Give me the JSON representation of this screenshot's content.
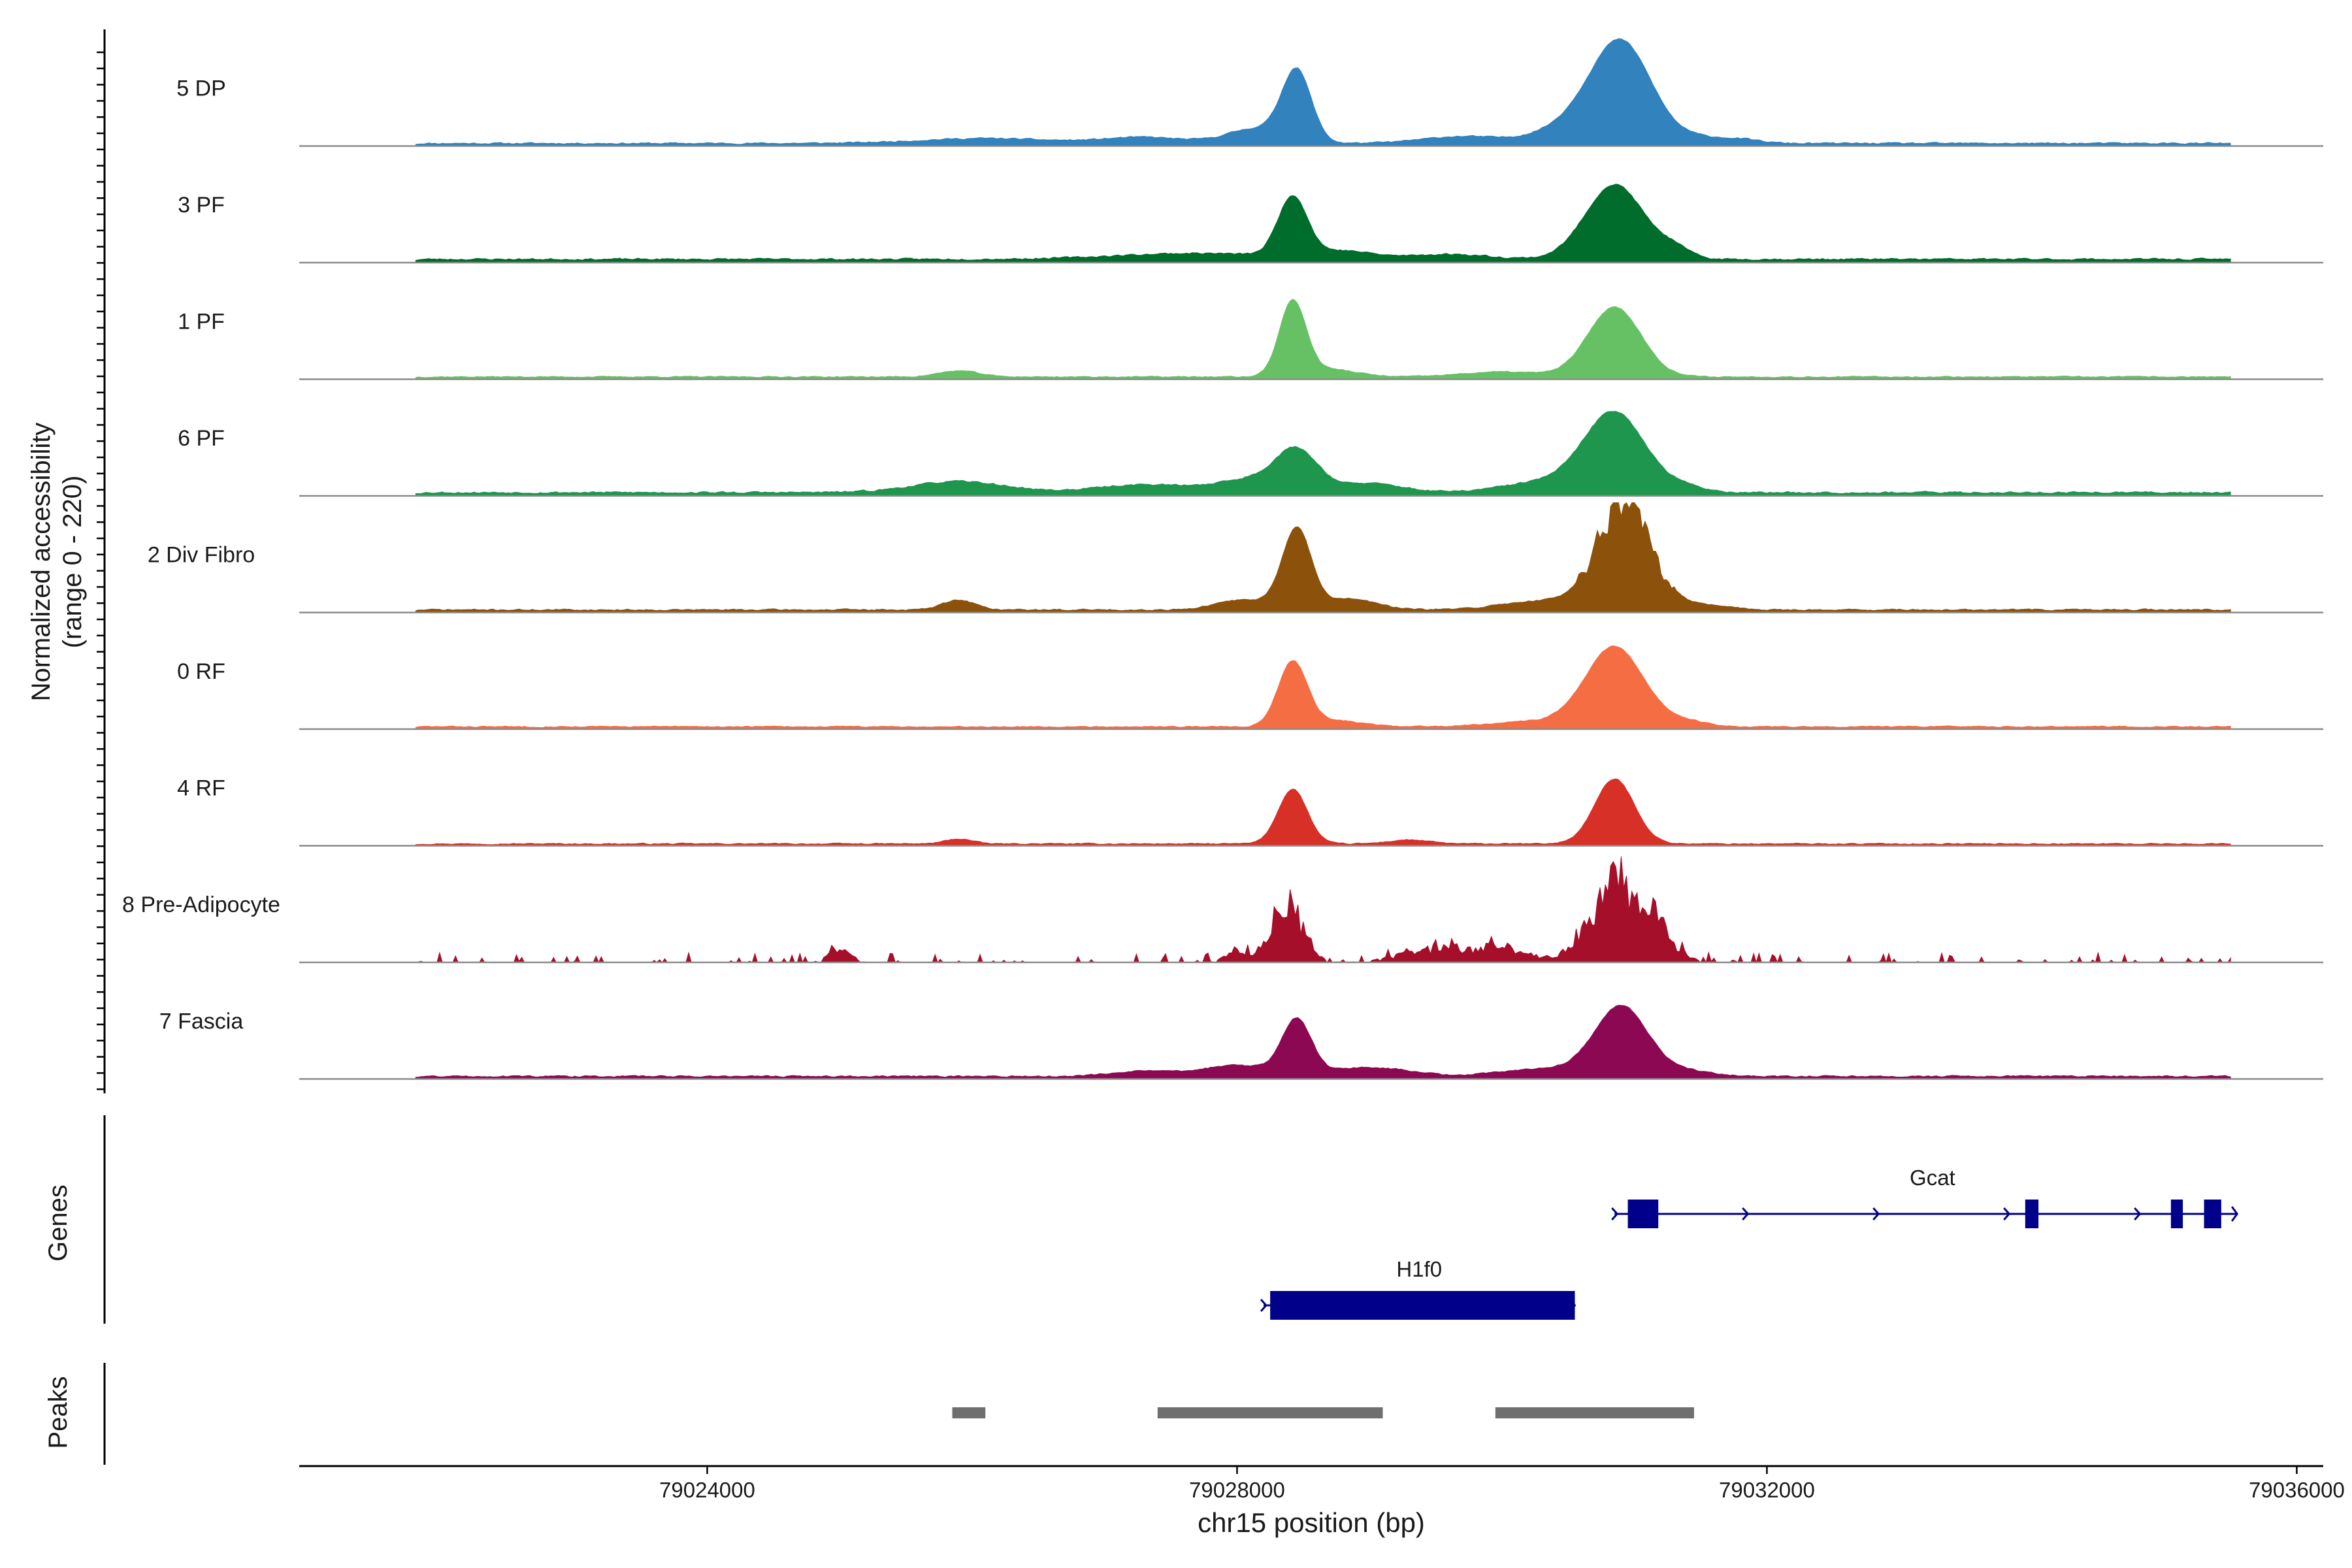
{
  "chart_data": {
    "type": "area",
    "title": "",
    "xlabel": "chr15 position (bp)",
    "ylabel_line1": "Normalized accessibility",
    "ylabel_line2": "(range 0 - 220)",
    "ylim": [
      0,
      220
    ],
    "xlim": [
      79020920,
      79036200
    ],
    "x_ticks": [
      79024000,
      79028000,
      79032000,
      79036000
    ],
    "x_tick_labels": [
      "79024000",
      "79028000",
      "79032000",
      "79036000"
    ],
    "tracks": [
      {
        "name": "5 DP",
        "color": "#3182bd",
        "base": 3,
        "peaks": [
          [
            79028450,
            140,
            110,
            0
          ],
          [
            79030900,
            200,
            230,
            0
          ],
          [
            79028150,
            30,
            220,
            0
          ],
          [
            79030500,
            30,
            250,
            0
          ],
          [
            79026100,
            10,
            500,
            0
          ],
          [
            79027300,
            12,
            300,
            0
          ],
          [
            79029700,
            14,
            300,
            0
          ],
          [
            79031500,
            10,
            160,
            0
          ],
          [
            79031800,
            8,
            150,
            0
          ]
        ],
        "noise": 5,
        "seed": 11
      },
      {
        "name": "3 PF",
        "color": "#006d2c",
        "base": 4,
        "peaks": [
          [
            79028420,
            120,
            110,
            0
          ],
          [
            79030850,
            150,
            220,
            0
          ],
          [
            79027700,
            12,
            600,
            0
          ],
          [
            79028800,
            15,
            220,
            0
          ],
          [
            79031300,
            18,
            120,
            0
          ],
          [
            79029600,
            10,
            300,
            0
          ]
        ],
        "noise": 6,
        "seed": 23
      },
      {
        "name": "1 PF",
        "color": "#66c164",
        "base": 3,
        "peaks": [
          [
            79028420,
            150,
            100,
            0
          ],
          [
            79030850,
            140,
            200,
            0
          ],
          [
            79025900,
            12,
            150,
            0
          ],
          [
            79028700,
            15,
            200,
            0
          ],
          [
            79030000,
            10,
            300,
            0
          ]
        ],
        "noise": 4,
        "seed": 37
      },
      {
        "name": "6 PF",
        "color": "#1f964e",
        "base": 4,
        "peaks": [
          [
            79028450,
            80,
            160,
            0
          ],
          [
            79030850,
            160,
            230,
            0
          ],
          [
            79028100,
            25,
            250,
            0
          ],
          [
            79029000,
            18,
            250,
            0
          ],
          [
            79030300,
            20,
            300,
            0
          ],
          [
            79025900,
            22,
            350,
            0
          ],
          [
            79027300,
            16,
            350,
            0
          ],
          [
            79031400,
            10,
            150,
            0
          ]
        ],
        "noise": 6,
        "seed": 53
      },
      {
        "name": "2 Div Fibro",
        "color": "#8c510a",
        "base": 3,
        "peaks": [
          [
            79028450,
            160,
            110,
            0
          ],
          [
            79030920,
            220,
            200,
            1
          ],
          [
            79028050,
            20,
            200,
            0
          ],
          [
            79028850,
            22,
            200,
            0
          ],
          [
            79030300,
            18,
            300,
            0
          ],
          [
            79025900,
            20,
            120,
            0
          ],
          [
            79031500,
            10,
            200,
            0
          ]
        ],
        "noise": 5,
        "seed": 71
      },
      {
        "name": "0 RF",
        "color": "#f46d43",
        "base": 3,
        "peaks": [
          [
            79028420,
            130,
            110,
            0
          ],
          [
            79030850,
            160,
            220,
            0
          ],
          [
            79028750,
            12,
            200,
            0
          ],
          [
            79030200,
            10,
            300,
            0
          ],
          [
            79031400,
            10,
            150,
            0
          ]
        ],
        "noise": 4,
        "seed": 83
      },
      {
        "name": "4 RF",
        "color": "#d73027",
        "base": 2,
        "peaks": [
          [
            79028420,
            110,
            110,
            0
          ],
          [
            79030850,
            130,
            150,
            0
          ],
          [
            79025900,
            10,
            100,
            0
          ],
          [
            79029300,
            8,
            150,
            0
          ]
        ],
        "noise": 4,
        "seed": 97
      },
      {
        "name": "8 Pre-Adipocyte",
        "color": "#a50f2a",
        "base": 0,
        "peaks": [
          [
            79028380,
            140,
            120,
            1
          ],
          [
            79030920,
            190,
            220,
            1
          ],
          [
            79028000,
            20,
            100,
            0
          ],
          [
            79029500,
            30,
            250,
            1
          ],
          [
            79030000,
            30,
            200,
            1
          ],
          [
            79025000,
            30,
            80,
            1
          ]
        ],
        "noise": 14,
        "seed": 113,
        "sparse": true
      },
      {
        "name": "7 Fascia",
        "color": "#8c0852",
        "base": 3,
        "peaks": [
          [
            79028450,
            110,
            110,
            0
          ],
          [
            79030900,
            140,
            200,
            0
          ],
          [
            79028000,
            22,
            250,
            0
          ],
          [
            79029000,
            18,
            300,
            0
          ],
          [
            79030300,
            15,
            300,
            0
          ],
          [
            79027300,
            10,
            250,
            0
          ],
          [
            79031400,
            10,
            200,
            0
          ]
        ],
        "noise": 5,
        "seed": 131
      }
    ],
    "genes_label": "Genes",
    "genes": [
      {
        "name": "Gcat",
        "start": 79030850,
        "end": 79035550,
        "strand": "+",
        "row": 0,
        "exons": [
          [
            79030950,
            79031180
          ],
          [
            79033950,
            79034050
          ],
          [
            79035050,
            79035140
          ],
          [
            79035300,
            79035430
          ]
        ]
      },
      {
        "name": "H1f0",
        "start": 79028200,
        "end": 79030550,
        "strand": "+",
        "row": 1,
        "exons": [
          [
            79028250,
            79030550
          ]
        ]
      }
    ],
    "gene_color": "#00008b",
    "peaks_label": "Peaks",
    "peak_color": "#6f6f6f",
    "peak_regions": [
      [
        79025850,
        79026100
      ],
      [
        79027400,
        79029100
      ],
      [
        79029950,
        79031450
      ]
    ]
  }
}
